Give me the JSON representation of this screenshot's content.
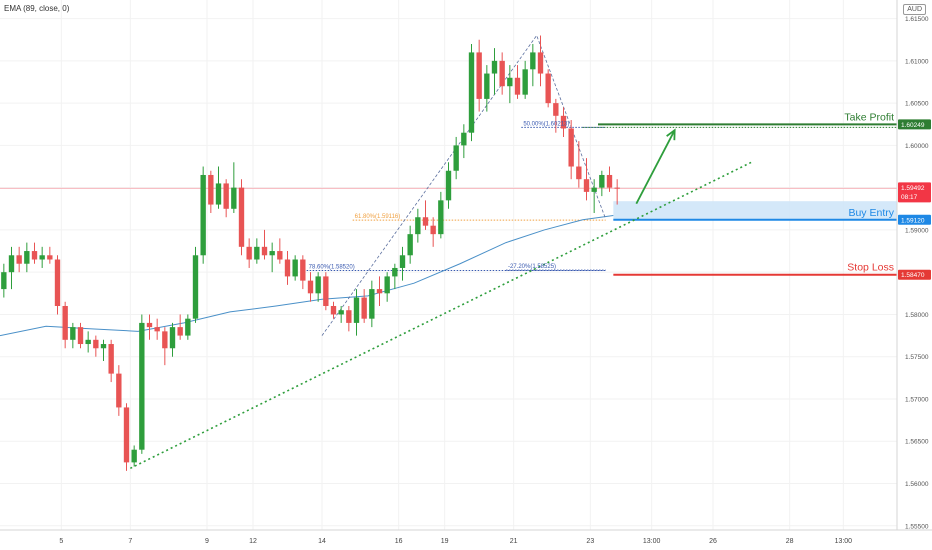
{
  "indicator_label": "EMA (89, close, 0)",
  "currency": "AUD",
  "chart_data": {
    "type": "candlestick",
    "price_ticks": [
      1.555,
      1.56,
      1.565,
      1.57,
      1.575,
      1.58,
      1.585,
      1.59,
      1.595,
      1.6,
      1.605,
      1.61,
      1.615
    ],
    "price_tick_labels": [
      "1.55500",
      "1.56000",
      "1.56500",
      "1.57000",
      "1.57500",
      "1.58000",
      "1.58500",
      "1.59000",
      "1.59500",
      "1.60000",
      "1.60500",
      "1.61000",
      "1.61500"
    ],
    "ylim": [
      1.5545,
      1.6172
    ],
    "x_ticks": [
      {
        "label": "5",
        "bar": 8
      },
      {
        "label": "7",
        "bar": 17
      },
      {
        "label": "9",
        "bar": 27
      },
      {
        "label": "12",
        "bar": 33
      },
      {
        "label": "14",
        "bar": 42
      },
      {
        "label": "16",
        "bar": 52
      },
      {
        "label": "19",
        "bar": 58
      },
      {
        "label": "21",
        "bar": 67
      },
      {
        "label": "23",
        "bar": 77
      },
      {
        "label": "13:00",
        "bar": 85
      },
      {
        "label": "26",
        "bar": 93
      },
      {
        "label": "28",
        "bar": 103
      },
      {
        "label": "13:00",
        "bar": 110
      }
    ],
    "x_range": [
      0,
      117
    ],
    "candles": [
      [
        1.583,
        1.586,
        1.582,
        1.585
      ],
      [
        1.585,
        1.588,
        1.583,
        1.587
      ],
      [
        1.587,
        1.588,
        1.585,
        1.586
      ],
      [
        1.586,
        1.5885,
        1.585,
        1.5875
      ],
      [
        1.5875,
        1.5885,
        1.586,
        1.5865
      ],
      [
        1.5865,
        1.588,
        1.5855,
        1.587
      ],
      [
        1.587,
        1.588,
        1.586,
        1.5865
      ],
      [
        1.5865,
        1.587,
        1.58,
        1.581
      ],
      [
        1.581,
        1.5815,
        1.576,
        1.577
      ],
      [
        1.577,
        1.579,
        1.576,
        1.5785
      ],
      [
        1.5785,
        1.579,
        1.576,
        1.5765
      ],
      [
        1.5765,
        1.578,
        1.5755,
        1.577
      ],
      [
        1.577,
        1.5775,
        1.575,
        1.576
      ],
      [
        1.576,
        1.577,
        1.5745,
        1.5765
      ],
      [
        1.5765,
        1.577,
        1.572,
        1.573
      ],
      [
        1.573,
        1.574,
        1.568,
        1.569
      ],
      [
        1.569,
        1.5695,
        1.5615,
        1.5625
      ],
      [
        1.5625,
        1.5645,
        1.562,
        1.564
      ],
      [
        1.564,
        1.58,
        1.5635,
        1.579
      ],
      [
        1.579,
        1.58,
        1.577,
        1.5785
      ],
      [
        1.5785,
        1.5795,
        1.577,
        1.578
      ],
      [
        1.578,
        1.5785,
        1.574,
        1.576
      ],
      [
        1.576,
        1.579,
        1.575,
        1.5785
      ],
      [
        1.5785,
        1.58,
        1.577,
        1.5775
      ],
      [
        1.5775,
        1.58,
        1.577,
        1.5795
      ],
      [
        1.5795,
        1.588,
        1.579,
        1.587
      ],
      [
        1.587,
        1.5975,
        1.586,
        1.5965
      ],
      [
        1.5965,
        1.597,
        1.592,
        1.593
      ],
      [
        1.593,
        1.5975,
        1.5925,
        1.5955
      ],
      [
        1.5955,
        1.596,
        1.5915,
        1.5925
      ],
      [
        1.5925,
        1.598,
        1.592,
        1.595
      ],
      [
        1.595,
        1.596,
        1.587,
        1.588
      ],
      [
        1.588,
        1.589,
        1.5855,
        1.5865
      ],
      [
        1.5865,
        1.589,
        1.586,
        1.588
      ],
      [
        1.588,
        1.59,
        1.5865,
        1.587
      ],
      [
        1.587,
        1.5885,
        1.585,
        1.5875
      ],
      [
        1.5875,
        1.589,
        1.586,
        1.5865
      ],
      [
        1.5865,
        1.5875,
        1.5835,
        1.5845
      ],
      [
        1.5845,
        1.587,
        1.584,
        1.5865
      ],
      [
        1.5865,
        1.587,
        1.583,
        1.584
      ],
      [
        1.584,
        1.585,
        1.5815,
        1.5825
      ],
      [
        1.5825,
        1.585,
        1.5815,
        1.5845
      ],
      [
        1.5845,
        1.585,
        1.5805,
        1.581
      ],
      [
        1.581,
        1.5815,
        1.5795,
        1.58
      ],
      [
        1.58,
        1.581,
        1.579,
        1.5805
      ],
      [
        1.5805,
        1.581,
        1.578,
        1.579
      ],
      [
        1.579,
        1.583,
        1.5775,
        1.582
      ],
      [
        1.582,
        1.583,
        1.579,
        1.5795
      ],
      [
        1.5795,
        1.584,
        1.5785,
        1.583
      ],
      [
        1.583,
        1.5845,
        1.581,
        1.5825
      ],
      [
        1.5825,
        1.585,
        1.5815,
        1.5845
      ],
      [
        1.5845,
        1.586,
        1.583,
        1.5855
      ],
      [
        1.5855,
        1.588,
        1.584,
        1.587
      ],
      [
        1.587,
        1.5905,
        1.586,
        1.5895
      ],
      [
        1.5895,
        1.5925,
        1.5885,
        1.5915
      ],
      [
        1.5915,
        1.5935,
        1.59,
        1.5905
      ],
      [
        1.5905,
        1.5915,
        1.588,
        1.5895
      ],
      [
        1.5895,
        1.5945,
        1.589,
        1.5935
      ],
      [
        1.5935,
        1.598,
        1.5925,
        1.597
      ],
      [
        1.597,
        1.601,
        1.596,
        1.6
      ],
      [
        1.6,
        1.6025,
        1.5985,
        1.6015
      ],
      [
        1.6015,
        1.612,
        1.6005,
        1.611
      ],
      [
        1.611,
        1.6125,
        1.604,
        1.6055
      ],
      [
        1.6055,
        1.6095,
        1.604,
        1.6085
      ],
      [
        1.6085,
        1.6115,
        1.606,
        1.61
      ],
      [
        1.61,
        1.611,
        1.606,
        1.607
      ],
      [
        1.607,
        1.6095,
        1.605,
        1.608
      ],
      [
        1.608,
        1.6095,
        1.6055,
        1.606
      ],
      [
        1.606,
        1.61,
        1.6055,
        1.609
      ],
      [
        1.609,
        1.612,
        1.607,
        1.611
      ],
      [
        1.611,
        1.613,
        1.607,
        1.6085
      ],
      [
        1.6085,
        1.609,
        1.6045,
        1.605
      ],
      [
        1.605,
        1.6055,
        1.6015,
        1.6035
      ],
      [
        1.6035,
        1.6045,
        1.601,
        1.602
      ],
      [
        1.602,
        1.603,
        1.596,
        1.5975
      ],
      [
        1.5975,
        1.6005,
        1.595,
        1.596
      ],
      [
        1.596,
        1.5985,
        1.5935,
        1.5945
      ],
      [
        1.5945,
        1.596,
        1.592,
        1.595
      ],
      [
        1.595,
        1.597,
        1.594,
        1.5965
      ],
      [
        1.5965,
        1.5975,
        1.5945,
        1.595
      ],
      [
        1.595,
        1.596,
        1.593,
        1.5949
      ]
    ],
    "ema_89": [
      [
        0,
        1.5775
      ],
      [
        6,
        1.5786
      ],
      [
        12,
        1.5783
      ],
      [
        18,
        1.578
      ],
      [
        24,
        1.579
      ],
      [
        30,
        1.5803
      ],
      [
        36,
        1.581
      ],
      [
        42,
        1.5818
      ],
      [
        48,
        1.5822
      ],
      [
        54,
        1.5837
      ],
      [
        60,
        1.586
      ],
      [
        66,
        1.5885
      ],
      [
        71,
        1.59
      ],
      [
        76,
        1.5912
      ],
      [
        80,
        1.5917
      ]
    ],
    "trendlines": [
      {
        "from": [
          17,
          1.5618
        ],
        "to": [
          98,
          1.598
        ],
        "style": "dotted",
        "color": "#2e9e3c"
      }
    ],
    "zigzag": [
      [
        42,
        1.5775
      ],
      [
        70,
        1.613
      ],
      [
        79,
        1.5913
      ]
    ],
    "current_price": {
      "value": 1.59492,
      "label": "1.59492",
      "countdown": "08:17",
      "color": "#f23645"
    },
    "fib_levels": [
      {
        "label": "61.80%(1.59116)",
        "value": 1.59116,
        "from": 46,
        "to": 79,
        "color": "#f0a040"
      },
      {
        "label": "78.60%(1.58520)",
        "value": 1.5852,
        "from": 40,
        "to": 79,
        "color": "#3a5ab0"
      },
      {
        "label": "50.00%(1.60213)",
        "value": 1.60213,
        "from": 68,
        "to": 79,
        "color": "#3a5ab0"
      },
      {
        "label": "-27.20%(1.58525)",
        "value": 1.58525,
        "from": 66,
        "to": 79,
        "color": "#3a5ab0"
      }
    ],
    "trade_levels": [
      {
        "name": "Take Profit",
        "label": "1.60249",
        "value": 1.60249,
        "from": 78,
        "color": "#2e7d32"
      },
      {
        "name": "Buy Entry",
        "label": "1.59120",
        "value": 1.5912,
        "from": 80,
        "color": "#1e88e5"
      },
      {
        "name": "Stop Loss",
        "label": "1.58470",
        "value": 1.5847,
        "from": 80,
        "color": "#e53935"
      }
    ],
    "buy_zone": {
      "from": 80,
      "top": 1.5934,
      "bottom": 1.5912,
      "color": "#cfe5f8"
    },
    "projection_arrow": [
      [
        83,
        1.5931
      ],
      [
        88,
        1.6018
      ]
    ]
  }
}
